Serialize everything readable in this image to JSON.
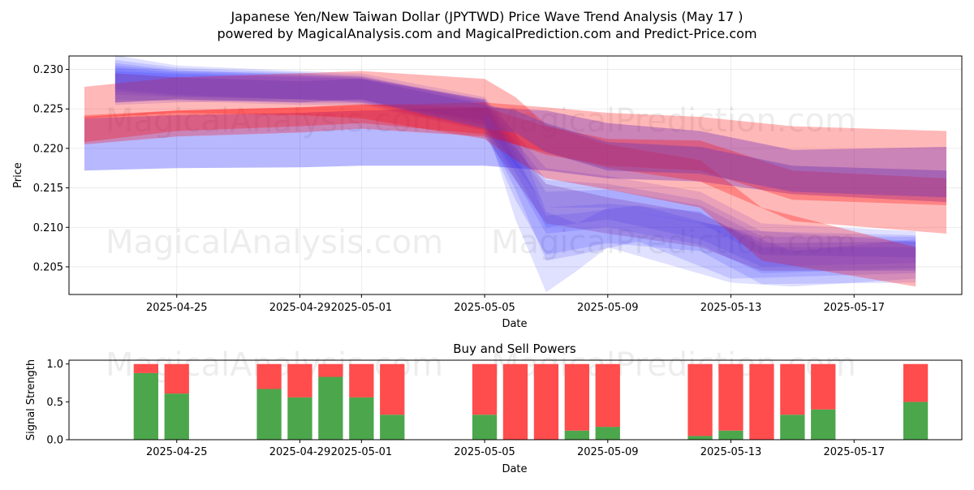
{
  "header": {
    "title": "Japanese Yen/New Taiwan Dollar (JPYTWD) Price Wave Trend Analysis (May 17 )",
    "subtitle": "powered by MagicalAnalysis.com and MagicalPrediction.com and Predict-Price.com"
  },
  "watermarks": [
    "MagicalAnalysis.com",
    "MagicalPrediction.com"
  ],
  "chart_data": [
    {
      "type": "area",
      "xlabel": "Date",
      "ylabel": "Price",
      "xlim": [
        "2025-04-22",
        "2025-05-20"
      ],
      "ylim": [
        0.2015,
        0.2317
      ],
      "x_ticks": [
        "2025-04-25",
        "2025-04-29",
        "2025-05-01",
        "2025-05-05",
        "2025-05-09",
        "2025-05-13",
        "2025-05-17"
      ],
      "y_ticks": [
        0.205,
        0.21,
        0.215,
        0.22,
        0.225,
        0.23
      ],
      "y_tick_labels": [
        "0.205",
        "0.210",
        "0.215",
        "0.220",
        "0.225",
        "0.230"
      ],
      "grid": true,
      "colors": {
        "blue": "#0000ff",
        "red": "#ff0000",
        "purple": "#7a3db0"
      },
      "bands": [
        {
          "color": "blue",
          "opacity": 0.12,
          "points": [
            [
              "2025-04-23",
              0.2318,
              0.2255
            ],
            [
              "2025-04-25",
              0.2305,
              0.2258
            ],
            [
              "2025-04-29",
              0.2298,
              0.2262
            ],
            [
              "2025-05-01",
              0.2295,
              0.2258
            ],
            [
              "2025-05-05",
              0.2265,
              0.2235
            ],
            [
              "2025-05-06",
              0.222,
              0.211
            ],
            [
              "2025-05-07",
              0.212,
              0.2018
            ],
            [
              "2025-05-08",
              0.2105,
              0.2045
            ],
            [
              "2025-05-09",
              0.2125,
              0.2075
            ],
            [
              "2025-05-13",
              0.21,
              0.203
            ],
            [
              "2025-05-15",
              0.207,
              0.2025
            ],
            [
              "2025-05-19",
              0.2085,
              0.2035
            ]
          ]
        },
        {
          "color": "blue",
          "opacity": 0.12,
          "points": [
            [
              "2025-04-23",
              0.2312,
              0.2262
            ],
            [
              "2025-04-25",
              0.2302,
              0.226
            ],
            [
              "2025-04-29",
              0.2296,
              0.2255
            ],
            [
              "2025-05-01",
              0.2292,
              0.2255
            ],
            [
              "2025-05-05",
              0.226,
              0.2222
            ],
            [
              "2025-05-06",
              0.2185,
              0.2135
            ],
            [
              "2025-05-07",
              0.2125,
              0.2065
            ],
            [
              "2025-05-09",
              0.213,
              0.208
            ],
            [
              "2025-05-12",
              0.212,
              0.207
            ],
            [
              "2025-05-14",
              0.2075,
              0.2028
            ],
            [
              "2025-05-19",
              0.2075,
              0.203
            ]
          ]
        },
        {
          "color": "blue",
          "opacity": 0.12,
          "points": [
            [
              "2025-04-23",
              0.2305,
              0.2268
            ],
            [
              "2025-04-25",
              0.2298,
              0.2265
            ],
            [
              "2025-04-29",
              0.2295,
              0.2262
            ],
            [
              "2025-05-01",
              0.229,
              0.2258
            ],
            [
              "2025-05-05",
              0.2262,
              0.2228
            ],
            [
              "2025-05-06",
              0.221,
              0.217
            ],
            [
              "2025-05-07",
              0.216,
              0.21
            ],
            [
              "2025-05-09",
              0.2155,
              0.211
            ],
            [
              "2025-05-12",
              0.2135,
              0.2085
            ],
            [
              "2025-05-14",
              0.2095,
              0.205
            ],
            [
              "2025-05-19",
              0.209,
              0.2055
            ]
          ]
        },
        {
          "color": "blue",
          "opacity": 0.12,
          "points": [
            [
              "2025-04-23",
              0.2298,
              0.2275
            ],
            [
              "2025-04-25",
              0.2294,
              0.2268
            ],
            [
              "2025-04-29",
              0.229,
              0.2262
            ],
            [
              "2025-05-01",
              0.2288,
              0.2262
            ],
            [
              "2025-05-05",
              0.2262,
              0.2232
            ],
            [
              "2025-05-07",
              0.2175,
              0.2125
            ],
            [
              "2025-05-09",
              0.2165,
              0.2125
            ],
            [
              "2025-05-12",
              0.2145,
              0.2105
            ],
            [
              "2025-05-14",
              0.2105,
              0.2065
            ],
            [
              "2025-05-19",
              0.2095,
              0.2062
            ]
          ]
        },
        {
          "color": "blue",
          "opacity": 0.12,
          "points": [
            [
              "2025-04-23",
              0.2308,
              0.2258
            ],
            [
              "2025-04-25",
              0.2299,
              0.2262
            ],
            [
              "2025-04-29",
              0.2293,
              0.2258
            ],
            [
              "2025-05-01",
              0.2291,
              0.2257
            ],
            [
              "2025-05-05",
              0.2258,
              0.2224
            ],
            [
              "2025-05-06",
              0.2195,
              0.2148
            ],
            [
              "2025-05-07",
              0.2115,
              0.2058
            ],
            [
              "2025-05-08",
              0.2118,
              0.2065
            ],
            [
              "2025-05-10",
              0.2128,
              0.2082
            ],
            [
              "2025-05-13",
              0.2098,
              0.2035
            ],
            [
              "2025-05-19",
              0.2082,
              0.2042
            ]
          ]
        },
        {
          "color": "blue",
          "opacity": 0.12,
          "points": [
            [
              "2025-04-23",
              0.2302,
              0.2272
            ],
            [
              "2025-04-25",
              0.2296,
              0.2266
            ],
            [
              "2025-04-29",
              0.2292,
              0.2262
            ],
            [
              "2025-05-01",
              0.2289,
              0.226
            ],
            [
              "2025-05-05",
              0.2262,
              0.223
            ],
            [
              "2025-05-07",
              0.2145,
              0.2092
            ],
            [
              "2025-05-09",
              0.2148,
              0.21
            ],
            [
              "2025-05-12",
              0.2128,
              0.2078
            ],
            [
              "2025-05-14",
              0.2088,
              0.2042
            ],
            [
              "2025-05-19",
              0.2088,
              0.2048
            ]
          ]
        },
        {
          "color": "blue",
          "opacity": 0.28,
          "points": [
            [
              "2025-04-22",
              0.2238,
              0.2172
            ],
            [
              "2025-04-25",
              0.2242,
              0.2175
            ],
            [
              "2025-04-29",
              0.2245,
              0.2176
            ],
            [
              "2025-05-01",
              0.2248,
              0.2178
            ],
            [
              "2025-05-05",
              0.2252,
              0.2178
            ],
            [
              "2025-05-07",
              0.2248,
              0.2172
            ],
            [
              "2025-05-09",
              0.2232,
              0.2162
            ],
            [
              "2025-05-12",
              0.2222,
              0.2158
            ],
            [
              "2025-05-15",
              0.2198,
              0.2142
            ],
            [
              "2025-05-20",
              0.2202,
              0.2132
            ]
          ]
        },
        {
          "color": "red",
          "opacity": 0.28,
          "points": [
            [
              "2025-04-22",
              0.2278,
              0.2238
            ],
            [
              "2025-04-25",
              0.229,
              0.2245
            ],
            [
              "2025-04-29",
              0.2295,
              0.2242
            ],
            [
              "2025-05-01",
              0.2298,
              0.2238
            ],
            [
              "2025-05-05",
              0.2288,
              0.2212
            ],
            [
              "2025-05-06",
              0.2265,
              0.2185
            ],
            [
              "2025-05-07",
              0.223,
              0.2162
            ],
            [
              "2025-05-09",
              0.2205,
              0.2148
            ],
            [
              "2025-05-12",
              0.2185,
              0.2125
            ],
            [
              "2025-05-14",
              0.2125,
              0.2058
            ],
            [
              "2025-05-19",
              0.2075,
              0.2025
            ]
          ]
        },
        {
          "color": "red",
          "opacity": 0.28,
          "points": [
            [
              "2025-04-22",
              0.224,
              0.2205
            ],
            [
              "2025-04-25",
              0.2248,
              0.2215
            ],
            [
              "2025-04-29",
              0.2252,
              0.222
            ],
            [
              "2025-05-01",
              0.2255,
              0.2225
            ],
            [
              "2025-05-05",
              0.2258,
              0.2215
            ],
            [
              "2025-05-07",
              0.2252,
              0.2195
            ],
            [
              "2025-05-09",
              0.2245,
              0.2175
            ],
            [
              "2025-05-12",
              0.224,
              0.2158
            ],
            [
              "2025-05-15",
              0.2228,
              0.2108
            ],
            [
              "2025-05-20",
              0.2222,
              0.2092
            ]
          ]
        },
        {
          "color": "red",
          "opacity": 0.28,
          "points": [
            [
              "2025-04-22",
              0.2242,
              0.2208
            ],
            [
              "2025-04-25",
              0.2248,
              0.2222
            ],
            [
              "2025-04-29",
              0.2252,
              0.2228
            ],
            [
              "2025-05-01",
              0.2256,
              0.2232
            ],
            [
              "2025-05-05",
              0.2252,
              0.2218
            ],
            [
              "2025-05-07",
              0.2228,
              0.2192
            ],
            [
              "2025-05-09",
              0.2212,
              0.2178
            ],
            [
              "2025-05-12",
              0.221,
              0.2172
            ],
            [
              "2025-05-15",
              0.2172,
              0.2135
            ],
            [
              "2025-05-20",
              0.2162,
              0.2128
            ]
          ]
        },
        {
          "color": "purple",
          "opacity": 0.45,
          "points": [
            [
              "2025-04-23",
              0.2295,
              0.2258
            ],
            [
              "2025-04-25",
              0.229,
              0.2262
            ],
            [
              "2025-04-29",
              0.2285,
              0.2258
            ],
            [
              "2025-05-01",
              0.2288,
              0.2262
            ],
            [
              "2025-05-05",
              0.2255,
              0.2225
            ],
            [
              "2025-05-06",
              0.2248,
              0.222
            ],
            [
              "2025-05-07",
              0.2232,
              0.2195
            ],
            [
              "2025-05-09",
              0.2208,
              0.2172
            ],
            [
              "2025-05-12",
              0.2202,
              0.2168
            ],
            [
              "2025-05-15",
              0.2178,
              0.2145
            ],
            [
              "2025-05-20",
              0.2172,
              0.2138
            ]
          ]
        },
        {
          "color": "purple",
          "opacity": 0.3,
          "points": [
            [
              "2025-05-05",
              0.2245,
              0.2215
            ],
            [
              "2025-05-07",
              0.2155,
              0.2105
            ],
            [
              "2025-05-09",
              0.2138,
              0.2092
            ],
            [
              "2025-05-12",
              0.2118,
              0.2075
            ],
            [
              "2025-05-14",
              0.208,
              0.2045
            ],
            [
              "2025-05-19",
              0.2082,
              0.2045
            ]
          ]
        }
      ]
    },
    {
      "type": "bar",
      "title": "Buy and Sell Powers",
      "xlabel": "Date",
      "ylabel": "Signal Strength",
      "ylim": [
        0,
        1.05
      ],
      "y_ticks": [
        0.0,
        0.5,
        1.0
      ],
      "y_tick_labels": [
        "0.0",
        "0.5",
        "1.0"
      ],
      "x_ticks": [
        "2025-04-25",
        "2025-04-29",
        "2025-05-01",
        "2025-05-05",
        "2025-05-09",
        "2025-05-13",
        "2025-05-17"
      ],
      "colors": {
        "buy": "#4ca64c",
        "sell": "#ff4c4c"
      },
      "categories": [
        "2025-04-24",
        "2025-04-25",
        "2025-04-28",
        "2025-04-29",
        "2025-04-30",
        "2025-05-01",
        "2025-05-02",
        "2025-05-05",
        "2025-05-06",
        "2025-05-07",
        "2025-05-08",
        "2025-05-09",
        "2025-05-12",
        "2025-05-13",
        "2025-05-14",
        "2025-05-15",
        "2025-05-16",
        "2025-05-19"
      ],
      "series": [
        {
          "values": [
            0.88,
            0.61,
            0.67,
            0.56,
            0.83,
            0.56,
            0.33,
            0.33,
            0.0,
            0.0,
            0.12,
            0.17,
            0.05,
            0.12,
            0.0,
            0.33,
            0.4,
            0.5
          ]
        },
        {
          "values": [
            0.12,
            0.39,
            0.33,
            0.44,
            0.17,
            0.44,
            0.67,
            0.67,
            1.0,
            1.0,
            0.88,
            0.83,
            0.95,
            0.88,
            1.0,
            0.67,
            0.6,
            0.5
          ]
        }
      ]
    }
  ]
}
